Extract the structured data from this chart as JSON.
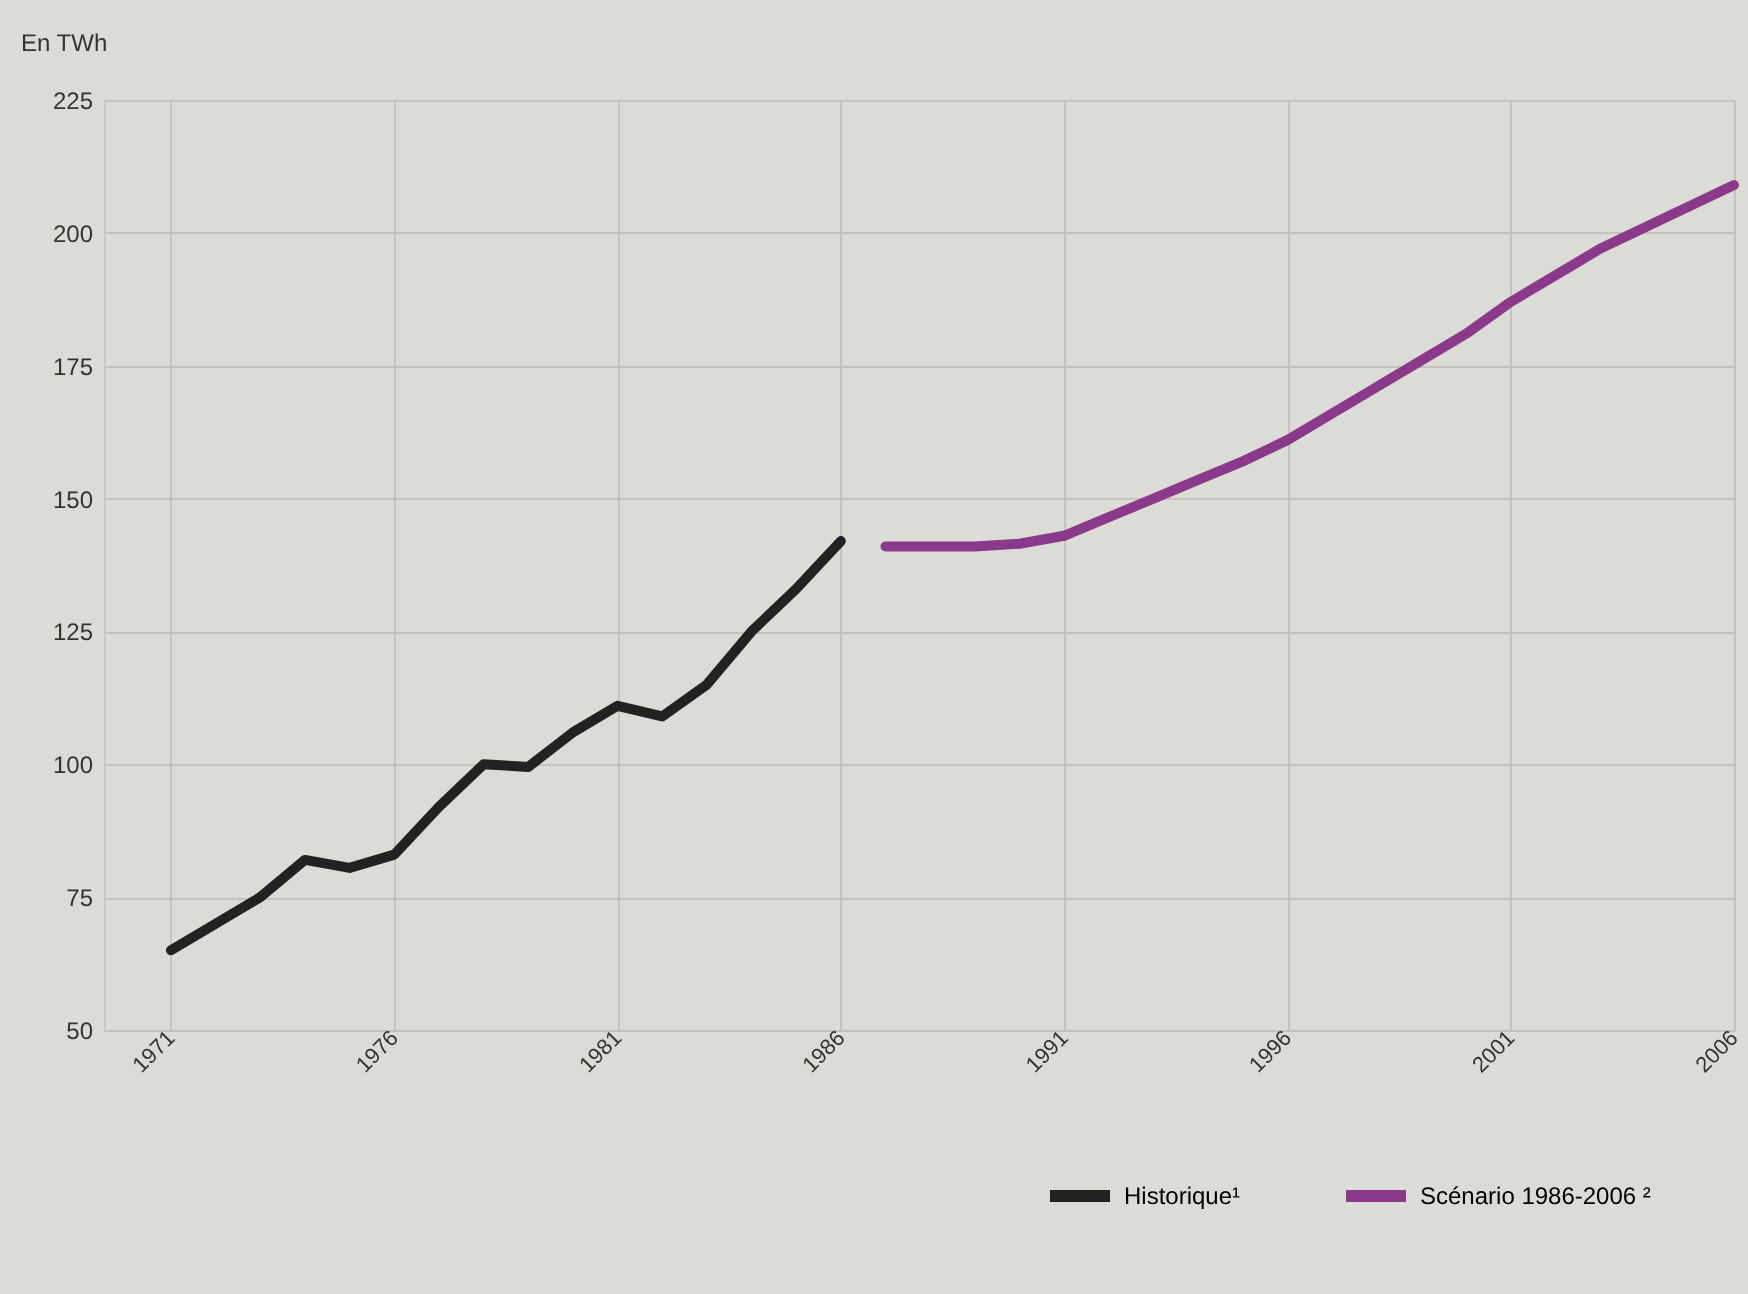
{
  "chart_data": {
    "type": "line",
    "ylabel": "En TWh",
    "xlim": [
      1969.5,
      2006
    ],
    "xticks": [
      1971,
      1976,
      1981,
      1986,
      1991,
      1996,
      2001,
      2006
    ],
    "ylim": [
      50,
      225
    ],
    "yticks": [
      50,
      75,
      100,
      125,
      150,
      175,
      200,
      225
    ],
    "grid": true,
    "legend": "bottom right",
    "series": [
      {
        "name": "Historique¹",
        "color": "#222222",
        "x": [
          1971,
          1972,
          1973,
          1974,
          1975,
          1976,
          1977,
          1978,
          1979,
          1980,
          1981,
          1982,
          1983,
          1984,
          1985,
          1986
        ],
        "values": [
          65,
          70,
          75,
          82,
          80.5,
          83,
          92,
          100,
          99.5,
          106,
          111,
          109,
          115,
          125,
          133,
          142
        ]
      },
      {
        "name": "Scénario 1986-2006 ²",
        "color": "#8b3a8b",
        "x": [
          1987,
          1988,
          1989,
          1990,
          1991,
          1992,
          1993,
          1994,
          1995,
          1996,
          1997,
          1998,
          1999,
          2000,
          2001,
          2002,
          2003,
          2004,
          2005,
          2006
        ],
        "values": [
          141,
          141,
          141,
          141.5,
          143,
          146.5,
          150,
          153.5,
          157,
          161,
          166,
          171,
          176,
          181,
          187,
          192,
          197,
          201,
          205,
          209
        ]
      }
    ]
  }
}
